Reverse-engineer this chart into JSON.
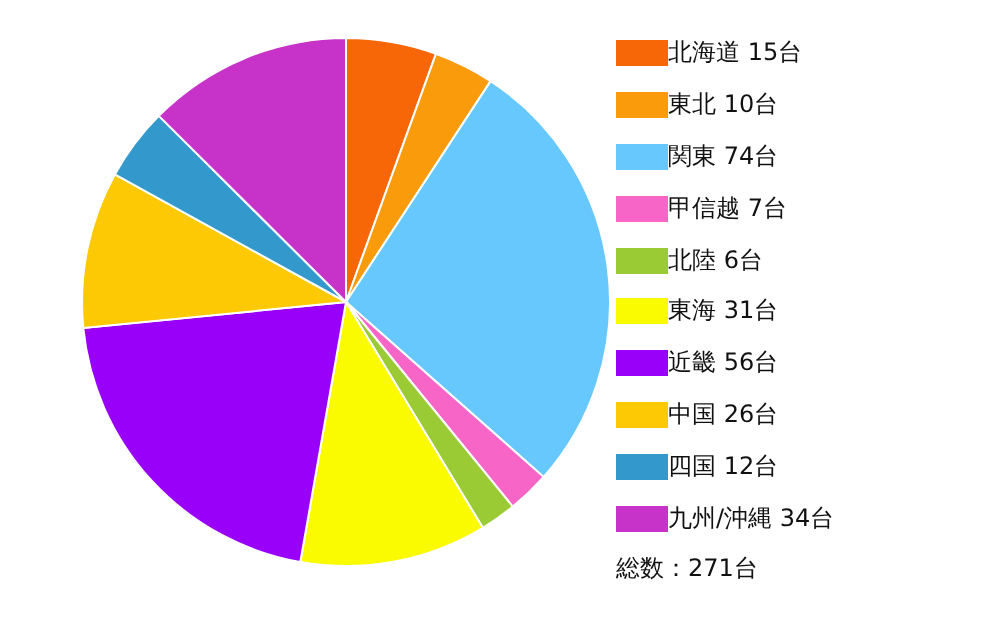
{
  "chart_data": {
    "type": "pie",
    "categories": [
      "北海道",
      "東北",
      "関東",
      "甲信越",
      "北陸",
      "東海",
      "近畿",
      "中国",
      "四国",
      "九州/沖縄"
    ],
    "values": [
      15,
      10,
      74,
      7,
      6,
      31,
      56,
      26,
      12,
      34
    ],
    "value_labels": [
      "15台",
      "10台",
      "74台",
      "7台",
      "6台",
      "31台",
      "56台",
      "26台",
      "12台",
      "34台"
    ],
    "colors": [
      "#f76707",
      "#f99b0b",
      "#66c8fc",
      "#f765c7",
      "#9acb34",
      "#fbfb00",
      "#9900f9",
      "#fcc904",
      "#3399cc",
      "#c733c9"
    ],
    "legend": "right",
    "annotations": [
      "総数：271台"
    ]
  }
}
